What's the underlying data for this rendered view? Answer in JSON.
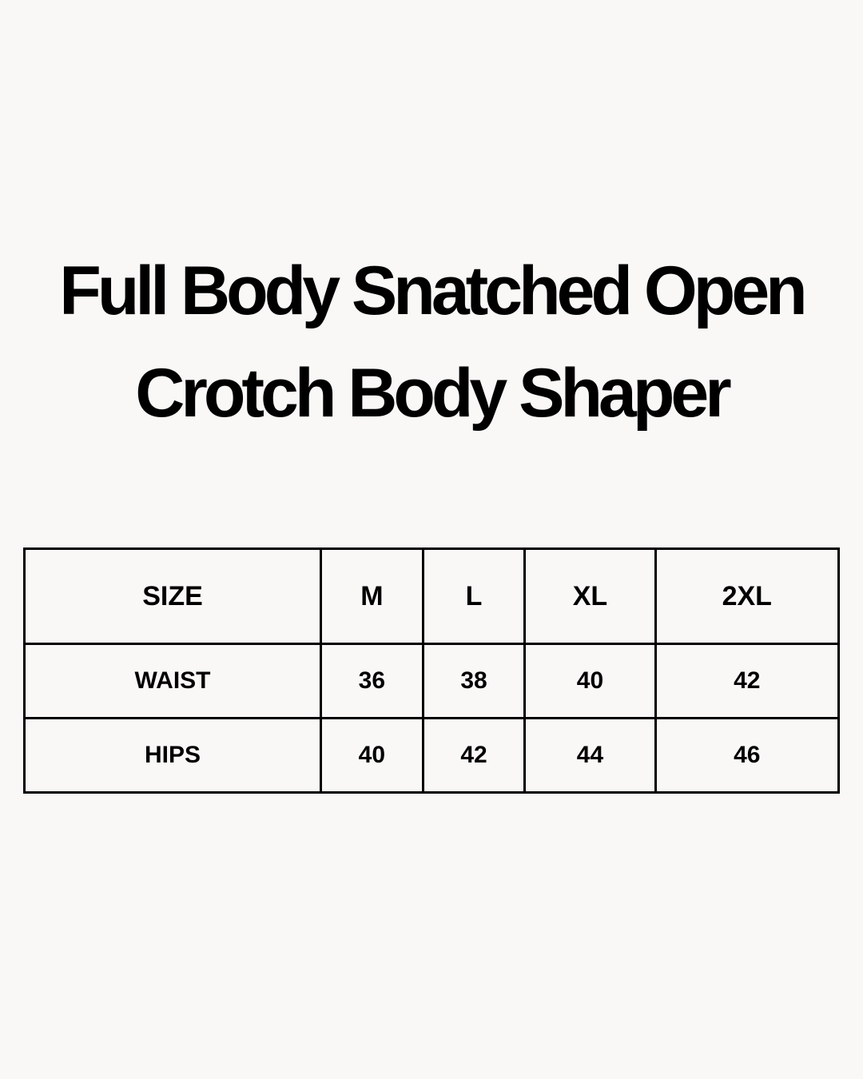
{
  "title": {
    "line1": "Full Body Snatched Open",
    "line2": "Crotch Body Shaper"
  },
  "size_table": {
    "header": [
      "SIZE",
      "M",
      "L",
      "XL",
      "2XL"
    ],
    "rows": [
      [
        "WAIST",
        "36",
        "38",
        "40",
        "42"
      ],
      [
        "HIPS",
        "40",
        "42",
        "44",
        "46"
      ]
    ]
  }
}
